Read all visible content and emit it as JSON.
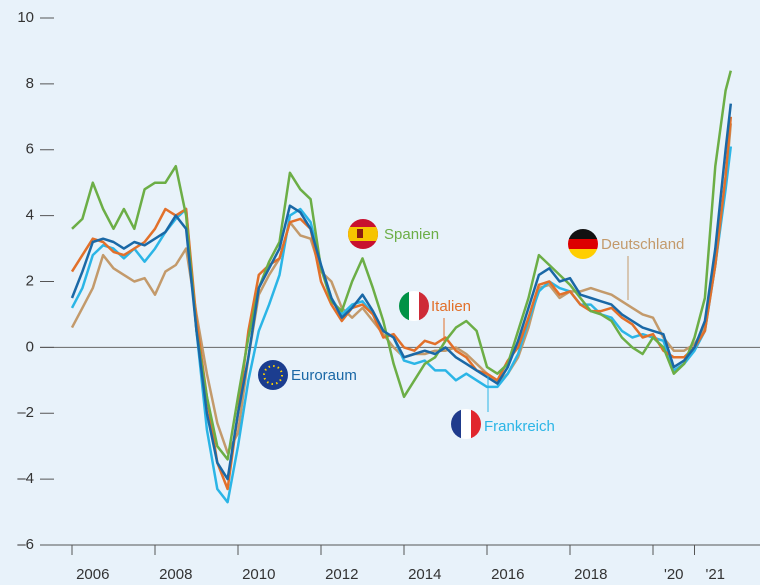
{
  "chart_data": {
    "type": "line",
    "x": [
      2006,
      2006.25,
      2006.5,
      2006.75,
      2007,
      2007.25,
      2007.5,
      2007.75,
      2008,
      2008.25,
      2008.5,
      2008.75,
      2009,
      2009.25,
      2009.5,
      2009.75,
      2010,
      2010.25,
      2010.5,
      2010.75,
      2011,
      2011.25,
      2011.5,
      2011.75,
      2012,
      2012.25,
      2012.5,
      2012.75,
      2013,
      2013.25,
      2013.5,
      2013.75,
      2014,
      2014.25,
      2014.5,
      2014.75,
      2015,
      2015.25,
      2015.5,
      2015.75,
      2016,
      2016.25,
      2016.5,
      2016.75,
      2017,
      2017.25,
      2017.5,
      2017.75,
      2018,
      2018.25,
      2018.5,
      2018.75,
      2019,
      2019.25,
      2019.5,
      2019.75,
      2020,
      2020.25,
      2020.5,
      2020.75,
      2021,
      2021.25,
      2021.5,
      2021.75,
      2021.875
    ],
    "series": [
      {
        "name": "Euroraum",
        "color": "#1a68a6",
        "values": [
          1.5,
          2.3,
          3.2,
          3.3,
          3.2,
          3.0,
          3.2,
          3.1,
          3.3,
          3.5,
          4.0,
          3.6,
          0.5,
          -2.0,
          -3.5,
          -4.0,
          -2.0,
          -0.3,
          1.8,
          2.4,
          3.0,
          4.3,
          4.1,
          3.6,
          2.5,
          1.5,
          0.9,
          1.2,
          1.6,
          1.1,
          0.5,
          0.3,
          -0.3,
          -0.2,
          -0.1,
          -0.2,
          0.0,
          -0.3,
          -0.5,
          -0.7,
          -0.9,
          -1.1,
          -0.6,
          0.2,
          1.2,
          2.2,
          2.4,
          2.0,
          2.1,
          1.6,
          1.5,
          1.4,
          1.3,
          1.0,
          0.8,
          0.6,
          0.5,
          0.4,
          -0.6,
          -0.4,
          0.0,
          0.8,
          3.0,
          6.0,
          7.4
        ]
      },
      {
        "name": "Spanien",
        "color": "#6cae46",
        "values": [
          3.6,
          3.9,
          5.0,
          4.2,
          3.6,
          4.2,
          3.6,
          4.8,
          5.0,
          5.0,
          5.5,
          4.0,
          0.5,
          -1.5,
          -3.0,
          -3.4,
          -1.5,
          0.3,
          1.8,
          2.6,
          3.2,
          5.3,
          4.8,
          4.5,
          2.4,
          1.4,
          1.1,
          2.0,
          2.7,
          1.8,
          0.8,
          -0.5,
          -1.5,
          -1.0,
          -0.5,
          -0.3,
          0.2,
          0.6,
          0.8,
          0.5,
          -0.6,
          -0.8,
          -0.5,
          0.5,
          1.5,
          2.8,
          2.5,
          2.2,
          1.9,
          1.5,
          1.1,
          1.0,
          0.8,
          0.3,
          0.0,
          -0.2,
          0.3,
          0.0,
          -0.8,
          -0.5,
          0.3,
          1.5,
          5.5,
          7.8,
          8.4
        ]
      },
      {
        "name": "Italien",
        "color": "#e2702a",
        "values": [
          2.3,
          2.8,
          3.3,
          3.2,
          2.9,
          2.8,
          3.0,
          3.2,
          3.6,
          4.2,
          4.0,
          4.2,
          0.8,
          -1.5,
          -3.5,
          -4.3,
          -2.0,
          0.5,
          2.2,
          2.5,
          2.7,
          3.8,
          3.9,
          3.6,
          2.0,
          1.3,
          0.8,
          1.2,
          1.3,
          1.0,
          0.3,
          0.4,
          0.0,
          -0.1,
          0.2,
          0.1,
          0.3,
          -0.1,
          -0.3,
          -0.7,
          -0.8,
          -1.0,
          -0.4,
          0.0,
          0.9,
          1.9,
          2.0,
          1.6,
          1.7,
          1.3,
          1.1,
          1.1,
          1.2,
          0.9,
          0.7,
          0.3,
          0.4,
          -0.1,
          -0.3,
          -0.3,
          0.0,
          0.5,
          2.5,
          5.2,
          7.0
        ]
      },
      {
        "name": "Frankreich",
        "color": "#2bb5e6",
        "values": [
          1.2,
          1.8,
          2.8,
          3.1,
          3.0,
          2.7,
          3.0,
          2.6,
          3.0,
          3.5,
          3.9,
          4.2,
          0.5,
          -2.5,
          -4.3,
          -4.7,
          -3.0,
          -1.0,
          0.5,
          1.3,
          2.2,
          4.0,
          4.2,
          3.8,
          2.5,
          1.5,
          1.0,
          1.3,
          1.4,
          1.0,
          0.5,
          0.3,
          -0.4,
          -0.5,
          -0.4,
          -0.7,
          -0.7,
          -1.0,
          -0.8,
          -1.0,
          -1.2,
          -1.2,
          -0.8,
          -0.2,
          0.8,
          1.7,
          2.0,
          1.8,
          1.7,
          1.3,
          1.3,
          1.0,
          0.9,
          0.5,
          0.3,
          0.4,
          0.3,
          0.2,
          -0.7,
          -0.5,
          -0.1,
          0.5,
          2.5,
          4.8,
          6.1
        ]
      },
      {
        "name": "Deutschland",
        "color": "#c39a6b",
        "values": [
          0.6,
          1.2,
          1.8,
          2.8,
          2.4,
          2.2,
          2.0,
          2.1,
          1.6,
          2.3,
          2.5,
          3.0,
          1.0,
          -0.8,
          -2.3,
          -3.2,
          -2.6,
          -0.3,
          1.6,
          2.2,
          2.7,
          3.8,
          3.4,
          3.3,
          2.3,
          2.0,
          1.2,
          0.9,
          1.2,
          0.8,
          0.4,
          0.0,
          -0.3,
          -0.2,
          -0.2,
          -0.1,
          -0.1,
          0.0,
          -0.2,
          -0.5,
          -0.8,
          -1.1,
          -0.8,
          -0.3,
          0.6,
          1.8,
          1.9,
          1.5,
          1.7,
          1.7,
          1.8,
          1.7,
          1.6,
          1.4,
          1.2,
          1.0,
          0.9,
          0.3,
          -0.1,
          -0.1,
          0.1,
          0.6,
          2.5,
          5.0,
          6.8
        ]
      }
    ],
    "xlim": [
      2006,
      2022
    ],
    "xticks": [
      2006,
      2008,
      2010,
      2012,
      2014,
      2016,
      2018,
      {
        "value": 2020,
        "label": "'20"
      },
      {
        "value": 2021,
        "label": "'21"
      }
    ],
    "ylim": [
      -6,
      10
    ],
    "yticks": [
      {
        "value": -6,
        "label": "–6"
      },
      {
        "value": -4,
        "label": "–4"
      },
      {
        "value": -2,
        "label": "–2"
      },
      0,
      2,
      4,
      6,
      8,
      10
    ]
  }
}
